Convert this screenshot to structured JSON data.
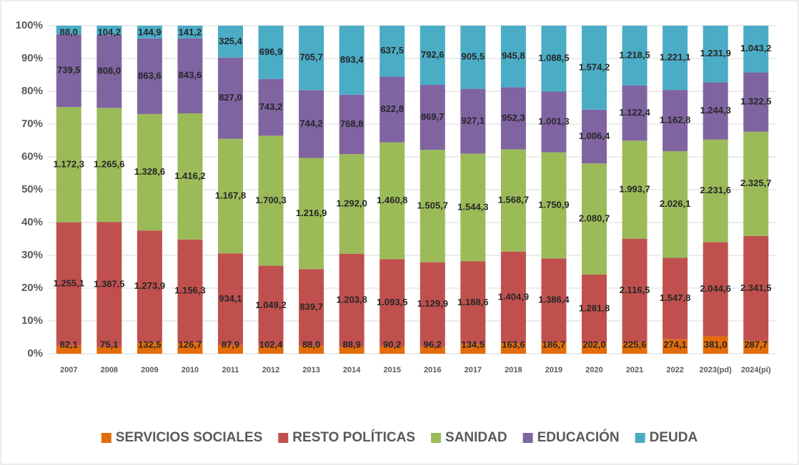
{
  "chart_data": {
    "type": "bar",
    "stacked": "percent",
    "categories": [
      "2007",
      "2008",
      "2009",
      "2010",
      "2011",
      "2012",
      "2013",
      "2014",
      "2015",
      "2016",
      "2017",
      "2018",
      "2019",
      "2020",
      "2021",
      "2022",
      "2023(pd)",
      "2024(pi)"
    ],
    "series": [
      {
        "name": "SERVICIOS SOCIALES",
        "color": "#e46c0a",
        "values": [
          82.1,
          75.1,
          132.5,
          126.7,
          87.9,
          102.4,
          88.0,
          88.9,
          90.2,
          96.2,
          134.5,
          163.6,
          186.7,
          202.0,
          225.6,
          274.1,
          381.0,
          287.7
        ],
        "value_labels": [
          "82,1",
          "75,1",
          "132,5",
          "126,7",
          "87,9",
          "102,4",
          "88,0",
          "88,9",
          "90,2",
          "96,2",
          "134,5",
          "163,6",
          "186,7",
          "202,0",
          "225,6",
          "274,1",
          "381,0",
          "287,7"
        ]
      },
      {
        "name": "RESTO POLÍTICAS",
        "color": "#c0504d",
        "values": [
          1255.1,
          1387.5,
          1273.9,
          1156.3,
          934.1,
          1049.2,
          839.7,
          1203.8,
          1093.5,
          1129.9,
          1188.6,
          1404.9,
          1386.4,
          1281.8,
          2116.5,
          1547.8,
          2044.6,
          2341.5
        ],
        "value_labels": [
          "1.255,1",
          "1.387,5",
          "1.273,9",
          "1.156,3",
          "934,1",
          "1.049,2",
          "839,7",
          "1.203,8",
          "1.093,5",
          "1.129,9",
          "1.188,6",
          "1.404,9",
          "1.386,4",
          "1.281,8",
          "2.116,5",
          "1.547,8",
          "2.044,6",
          "2.341,5"
        ]
      },
      {
        "name": "SANIDAD",
        "color": "#9bbb59",
        "values": [
          1172.3,
          1265.6,
          1328.6,
          1416.2,
          1167.8,
          1700.3,
          1216.9,
          1292.0,
          1460.8,
          1505.7,
          1544.3,
          1568.7,
          1750.9,
          2080.7,
          1993.7,
          2026.1,
          2231.6,
          2325.7
        ],
        "value_labels": [
          "1.172,3",
          "1.265,6",
          "1.328,6",
          "1.416,2",
          "1.167,8",
          "1.700,3",
          "1.216,9",
          "1.292,0",
          "1.460,8",
          "1.505,7",
          "1.544,3",
          "1.568,7",
          "1.750,9",
          "2.080,7",
          "1.993,7",
          "2.026,1",
          "2.231,6",
          "2.325,7"
        ]
      },
      {
        "name": "EDUCACIÓN",
        "color": "#8064a2",
        "values": [
          739.5,
          808.0,
          863.6,
          843.6,
          827.0,
          743.2,
          744.2,
          768.8,
          822.8,
          869.7,
          927.1,
          952.3,
          1001.3,
          1006.4,
          1122.4,
          1162.8,
          1244.3,
          1322.5
        ],
        "value_labels": [
          "739,5",
          "808,0",
          "863,6",
          "843,6",
          "827,0",
          "743,2",
          "744,2",
          "768,8",
          "822,8",
          "869,7",
          "927,1",
          "952,3",
          "1.001,3",
          "1.006,4",
          "1.122,4",
          "1.162,8",
          "1.244,3",
          "1.322,5"
        ]
      },
      {
        "name": "DEUDA",
        "color": "#4bacc6",
        "values": [
          88.0,
          104.2,
          144.9,
          141.2,
          325.4,
          696.9,
          705.7,
          893.4,
          637.5,
          792.6,
          905.5,
          945.8,
          1088.5,
          1574.2,
          1218.5,
          1221.1,
          1231.9,
          1043.2
        ],
        "value_labels": [
          "88,0",
          "104,2",
          "144,9",
          "141,2",
          "325,4",
          "696,9",
          "705,7",
          "893,4",
          "637,5",
          "792,6",
          "905,5",
          "945,8",
          "1.088,5",
          "1.574,2",
          "1.218,5",
          "1.221,1",
          "1.231,9",
          "1.043,2"
        ]
      }
    ],
    "ylim": [
      0,
      100
    ],
    "yticks": [
      {
        "value": 0,
        "label": "0%"
      },
      {
        "value": 10,
        "label": "10%"
      },
      {
        "value": 20,
        "label": "20%"
      },
      {
        "value": 30,
        "label": "30%"
      },
      {
        "value": 40,
        "label": "40%"
      },
      {
        "value": 50,
        "label": "50%"
      },
      {
        "value": 60,
        "label": "60%"
      },
      {
        "value": 70,
        "label": "70%"
      },
      {
        "value": 80,
        "label": "80%"
      },
      {
        "value": 90,
        "label": "90%"
      },
      {
        "value": 100,
        "label": "100%"
      }
    ],
    "grid": true,
    "legend": "bottom"
  }
}
